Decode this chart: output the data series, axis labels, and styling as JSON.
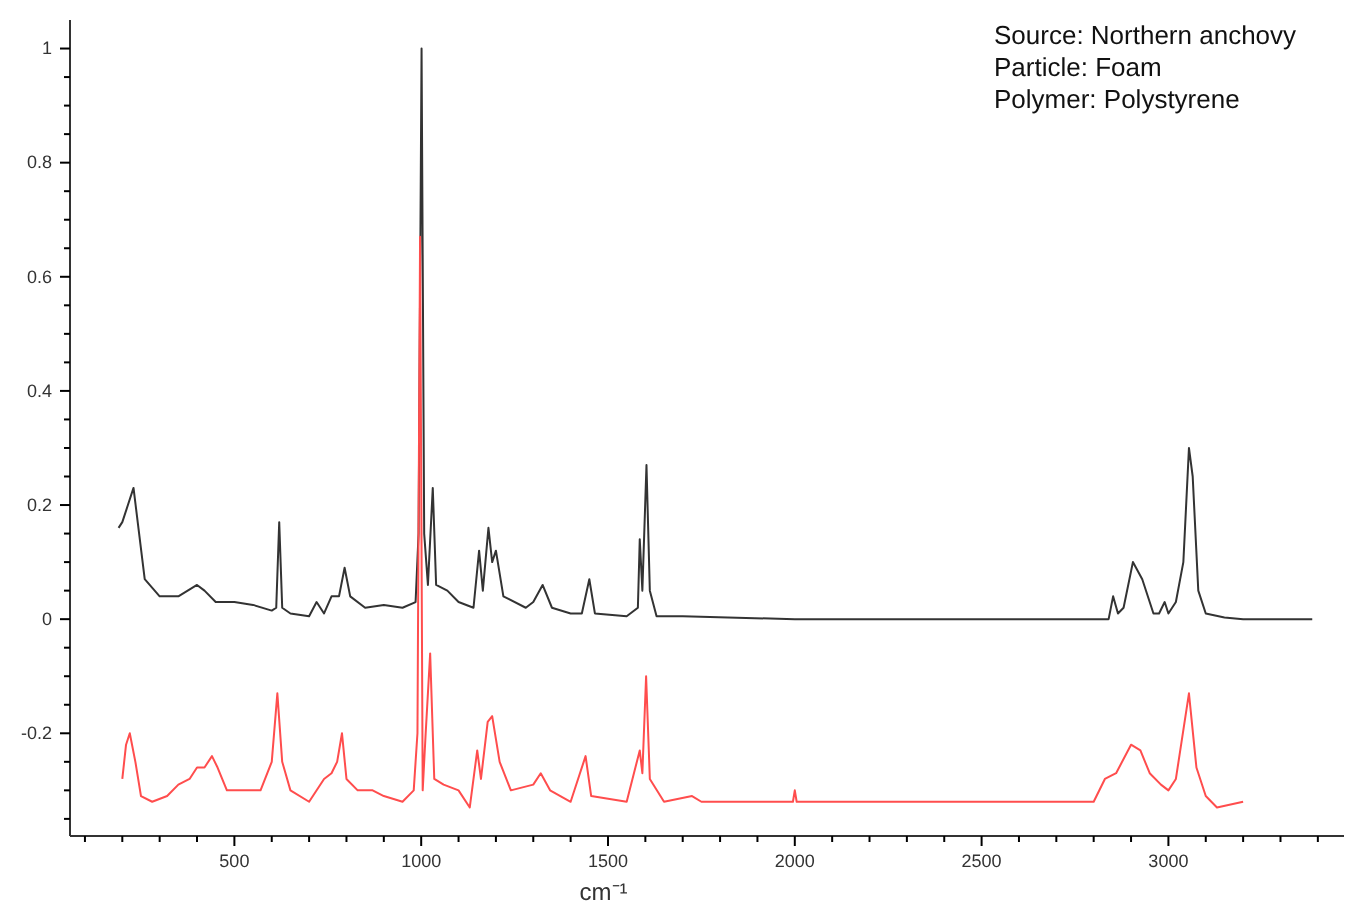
{
  "chart_data": {
    "type": "line",
    "xlabel": "cm⁻¹",
    "annotations": [
      "Source: Northern anchovy",
      "Particle: Foam",
      "Polymer: Polystyrene"
    ],
    "xlim": [
      60,
      3470
    ],
    "ylim": [
      -0.38,
      1.05
    ],
    "xticks": [
      {
        "value": 100,
        "label": null
      },
      {
        "value": 200,
        "label": null
      },
      {
        "value": 300,
        "label": null
      },
      {
        "value": 400,
        "label": null
      },
      500,
      {
        "value": 600,
        "label": null
      },
      {
        "value": 700,
        "label": null
      },
      {
        "value": 800,
        "label": null
      },
      {
        "value": 900,
        "label": null
      },
      1000,
      {
        "value": 1100,
        "label": null
      },
      {
        "value": 1200,
        "label": null
      },
      {
        "value": 1300,
        "label": null
      },
      {
        "value": 1400,
        "label": null
      },
      1500,
      {
        "value": 1600,
        "label": null
      },
      {
        "value": 1700,
        "label": null
      },
      {
        "value": 1800,
        "label": null
      },
      {
        "value": 1900,
        "label": null
      },
      2000,
      {
        "value": 2100,
        "label": null
      },
      {
        "value": 2200,
        "label": null
      },
      {
        "value": 2300,
        "label": null
      },
      {
        "value": 2400,
        "label": null
      },
      2500,
      {
        "value": 2600,
        "label": null
      },
      {
        "value": 2700,
        "label": null
      },
      {
        "value": 2800,
        "label": null
      },
      {
        "value": 2900,
        "label": null
      },
      3000,
      {
        "value": 3100,
        "label": null
      },
      {
        "value": 3200,
        "label": null
      },
      {
        "value": 3300,
        "label": null
      },
      {
        "value": 3400,
        "label": null
      }
    ],
    "yticks": [
      {
        "value": -0.35,
        "label": null
      },
      {
        "value": -0.3,
        "label": null
      },
      {
        "value": -0.25,
        "label": null
      },
      -0.2,
      {
        "value": -0.15,
        "label": null
      },
      {
        "value": -0.1,
        "label": null
      },
      {
        "value": -0.05,
        "label": null
      },
      0,
      {
        "value": 0.05,
        "label": null
      },
      {
        "value": 0.1,
        "label": null
      },
      {
        "value": 0.15,
        "label": null
      },
      0.2,
      {
        "value": 0.25,
        "label": null
      },
      {
        "value": 0.3,
        "label": null
      },
      {
        "value": 0.35,
        "label": null
      },
      0.4,
      {
        "value": 0.45,
        "label": null
      },
      {
        "value": 0.5,
        "label": null
      },
      {
        "value": 0.55,
        "label": null
      },
      0.6,
      {
        "value": 0.65,
        "label": null
      },
      {
        "value": 0.7,
        "label": null
      },
      {
        "value": 0.75,
        "label": null
      },
      0.8,
      {
        "value": 0.85,
        "label": null
      },
      {
        "value": 0.9,
        "label": null
      },
      {
        "value": 0.95,
        "label": null
      },
      1
    ],
    "series": [
      {
        "color": "#333333",
        "x": [
          190,
          200,
          215,
          230,
          245,
          260,
          300,
          350,
          400,
          420,
          450,
          500,
          550,
          600,
          612,
          620,
          628,
          650,
          700,
          720,
          740,
          760,
          780,
          795,
          810,
          850,
          900,
          950,
          985,
          993,
          1001,
          1008,
          1018,
          1031,
          1040,
          1070,
          1100,
          1140,
          1155,
          1165,
          1180,
          1190,
          1200,
          1220,
          1280,
          1300,
          1325,
          1350,
          1400,
          1430,
          1450,
          1465,
          1550,
          1580,
          1585,
          1592,
          1603,
          1612,
          1630,
          1700,
          2000,
          2500,
          2800,
          2840,
          2852,
          2865,
          2880,
          2905,
          2930,
          2960,
          2975,
          2990,
          3000,
          3020,
          3040,
          3055,
          3065,
          3080,
          3100,
          3150,
          3200,
          3385
        ],
        "values": [
          0.16,
          0.17,
          0.2,
          0.23,
          0.15,
          0.07,
          0.04,
          0.04,
          0.06,
          0.05,
          0.03,
          0.03,
          0.025,
          0.015,
          0.02,
          0.17,
          0.02,
          0.01,
          0.005,
          0.03,
          0.01,
          0.04,
          0.04,
          0.09,
          0.04,
          0.02,
          0.025,
          0.02,
          0.03,
          0.15,
          1.0,
          0.15,
          0.06,
          0.23,
          0.06,
          0.05,
          0.03,
          0.02,
          0.12,
          0.05,
          0.16,
          0.1,
          0.12,
          0.04,
          0.02,
          0.03,
          0.06,
          0.02,
          0.01,
          0.01,
          0.07,
          0.01,
          0.005,
          0.02,
          0.14,
          0.05,
          0.27,
          0.05,
          0.005,
          0.005,
          0,
          0,
          0,
          0,
          0.04,
          0.01,
          0.02,
          0.1,
          0.07,
          0.01,
          0.01,
          0.03,
          0.01,
          0.03,
          0.1,
          0.3,
          0.25,
          0.05,
          0.01,
          0.003,
          0,
          0
        ]
      },
      {
        "color": "#ff4d4d",
        "x": [
          200,
          210,
          220,
          235,
          250,
          280,
          320,
          350,
          380,
          400,
          420,
          440,
          455,
          480,
          520,
          570,
          600,
          615,
          628,
          650,
          700,
          740,
          760,
          775,
          788,
          800,
          830,
          870,
          900,
          950,
          980,
          990,
          997,
          1004,
          1012,
          1024,
          1035,
          1060,
          1100,
          1130,
          1150,
          1160,
          1178,
          1190,
          1210,
          1240,
          1300,
          1320,
          1345,
          1400,
          1440,
          1455,
          1550,
          1585,
          1592,
          1602,
          1612,
          1650,
          1725,
          1750,
          1995,
          2000,
          2005,
          2250,
          2500,
          2800,
          2830,
          2860,
          2900,
          2925,
          2950,
          2980,
          3000,
          3020,
          3055,
          3075,
          3100,
          3130,
          3200
        ],
        "values": [
          -0.28,
          -0.22,
          -0.2,
          -0.25,
          -0.31,
          -0.32,
          -0.31,
          -0.29,
          -0.28,
          -0.26,
          -0.26,
          -0.24,
          -0.26,
          -0.3,
          -0.3,
          -0.3,
          -0.25,
          -0.13,
          -0.25,
          -0.3,
          -0.32,
          -0.28,
          -0.27,
          -0.25,
          -0.2,
          -0.28,
          -0.3,
          -0.3,
          -0.31,
          -0.32,
          -0.3,
          -0.2,
          0.67,
          -0.3,
          -0.2,
          -0.06,
          -0.28,
          -0.29,
          -0.3,
          -0.33,
          -0.23,
          -0.28,
          -0.18,
          -0.17,
          -0.25,
          -0.3,
          -0.29,
          -0.27,
          -0.3,
          -0.32,
          -0.24,
          -0.31,
          -0.32,
          -0.23,
          -0.27,
          -0.1,
          -0.28,
          -0.32,
          -0.31,
          -0.32,
          -0.32,
          -0.3,
          -0.32,
          -0.32,
          -0.32,
          -0.32,
          -0.28,
          -0.27,
          -0.22,
          -0.23,
          -0.27,
          -0.29,
          -0.3,
          -0.28,
          -0.13,
          -0.26,
          -0.31,
          -0.33,
          -0.32
        ]
      }
    ]
  }
}
